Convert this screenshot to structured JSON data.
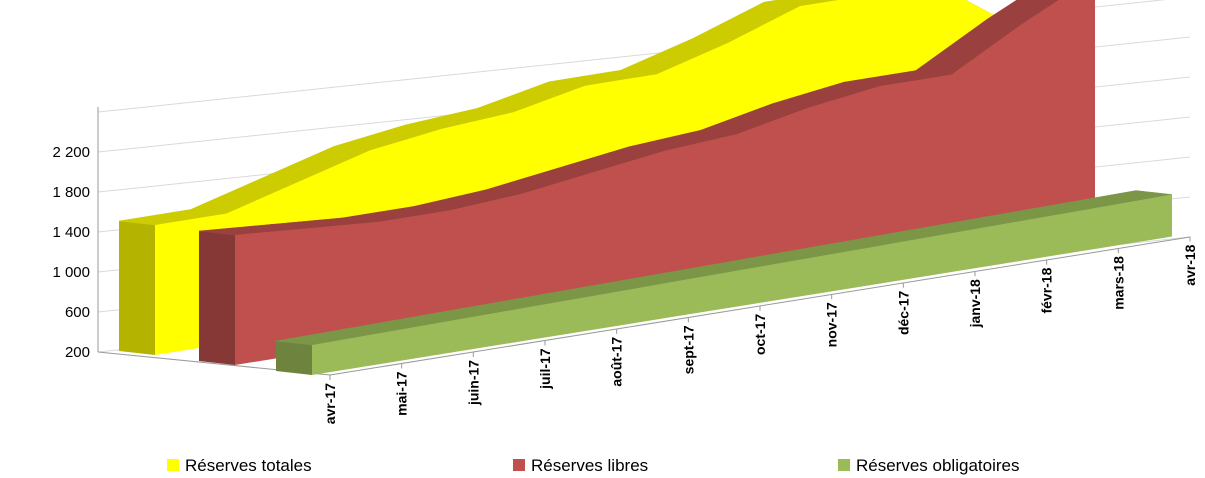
{
  "chart_data": {
    "type": "area3d",
    "categories": [
      "avr-17",
      "mai-17",
      "juin-17",
      "juil-17",
      "août-17",
      "sept-17",
      "oct-17",
      "nov-17",
      "déc-17",
      "janv-18",
      "févr-18",
      "mars-18",
      "avr-18"
    ],
    "series": [
      {
        "name": "Réserves totales",
        "color": "#ffff00",
        "values": [
          1500,
          1500,
          1700,
          1900,
          2000,
          2050,
          2200,
          2200,
          2400,
          2650,
          2650,
          2600,
          2100
        ]
      },
      {
        "name": "Réserves libres",
        "color": "#c0504d",
        "values": [
          1500,
          1450,
          1400,
          1400,
          1450,
          1550,
          1650,
          1700,
          1850,
          1950,
          1950,
          2350,
          2700
        ]
      },
      {
        "name": "Réserves obligatoires",
        "color": "#9bbb59",
        "values": [
          500,
          510,
          520,
          530,
          540,
          550,
          560,
          570,
          580,
          590,
          600,
          610,
          620
        ]
      }
    ],
    "ylim": [
      200,
      2600
    ],
    "yticks": [
      {
        "value": 200,
        "label": "200"
      },
      {
        "value": 600,
        "label": "600"
      },
      {
        "value": 1000,
        "label": "1 000"
      },
      {
        "value": 1400,
        "label": "1 400"
      },
      {
        "value": 1800,
        "label": "1 800"
      },
      {
        "value": 2200,
        "label": "2 200"
      }
    ],
    "grid": true,
    "legend": "bottom"
  }
}
